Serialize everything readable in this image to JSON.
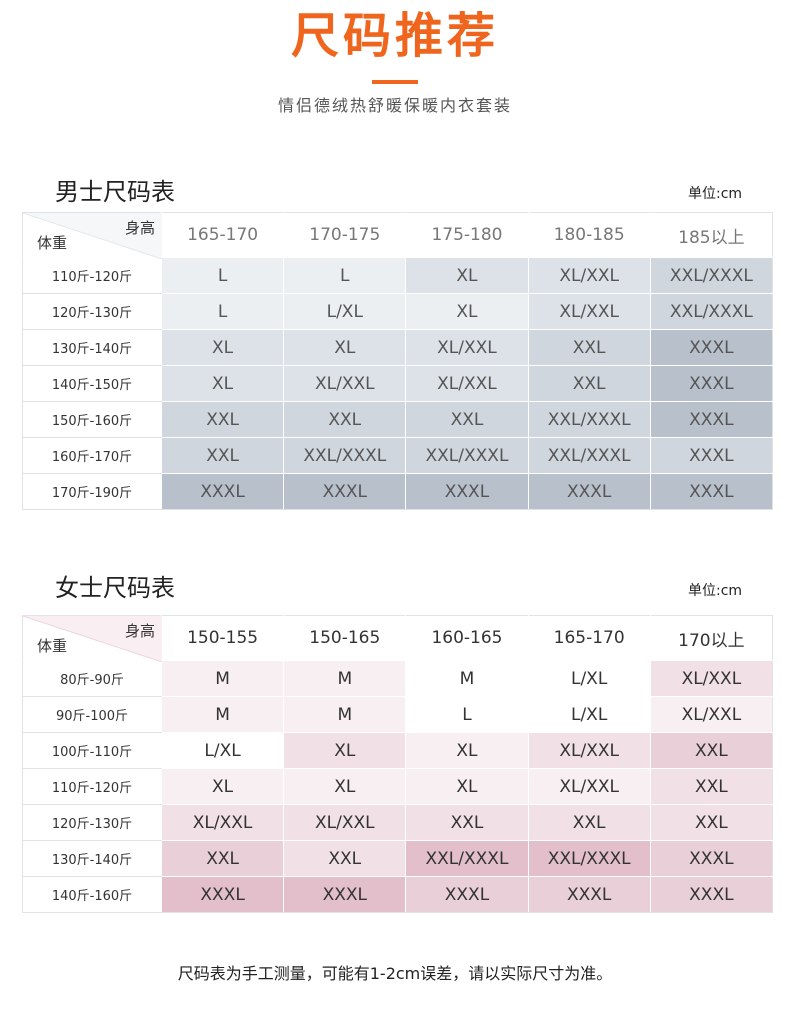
{
  "header": {
    "title": "尺码推荐",
    "subtitle": "情侣德绒热舒暖保暖内衣套装"
  },
  "men": {
    "title": "男士尺码表",
    "unit_label": "单位:",
    "unit_value": "cm",
    "corner_height": "身高",
    "corner_weight": "体重",
    "heights": [
      "165-170",
      "170-175",
      "175-180",
      "180-185",
      "185以上"
    ],
    "rows": [
      {
        "weight": "110斤-120斤",
        "sizes": [
          "L",
          "L",
          "XL",
          "XL/XXL",
          "XXL/XXXL"
        ]
      },
      {
        "weight": "120斤-130斤",
        "sizes": [
          "L",
          "L/XL",
          "XL",
          "XL/XXL",
          "XXL/XXXL"
        ]
      },
      {
        "weight": "130斤-140斤",
        "sizes": [
          "XL",
          "XL",
          "XL/XXL",
          "XXL",
          "XXXL"
        ]
      },
      {
        "weight": "140斤-150斤",
        "sizes": [
          "XL",
          "XL/XXL",
          "XL/XXL",
          "XXL",
          "XXXL"
        ]
      },
      {
        "weight": "150斤-160斤",
        "sizes": [
          "XXL",
          "XXL",
          "XXL",
          "XXL/XXXL",
          "XXXL"
        ]
      },
      {
        "weight": "160斤-170斤",
        "sizes": [
          "XXL",
          "XXL/XXXL",
          "XXL/XXXL",
          "XXL/XXXL",
          "XXXL"
        ]
      },
      {
        "weight": "170斤-190斤",
        "sizes": [
          "XXXL",
          "XXXL",
          "XXXL",
          "XXXL",
          "XXXL"
        ]
      }
    ],
    "colors": [
      "#eceff2",
      "#dde2e8",
      "#cfd6de",
      "#b7c0cb"
    ]
  },
  "women": {
    "title": "女士尺码表",
    "unit_label": "单位:",
    "unit_value": "cm",
    "corner_height": "身高",
    "corner_weight": "体重",
    "heights": [
      "150-155",
      "150-165",
      "160-165",
      "165-170",
      "170以上"
    ],
    "rows": [
      {
        "weight": "80斤-90斤",
        "sizes": [
          "M",
          "M",
          "M",
          "L/XL",
          "XL/XXL"
        ]
      },
      {
        "weight": "90斤-100斤",
        "sizes": [
          "M",
          "M",
          "L",
          "L/XL",
          "XL/XXL"
        ]
      },
      {
        "weight": "100斤-110斤",
        "sizes": [
          "L/XL",
          "XL",
          "XL",
          "XL/XXL",
          "XXL"
        ]
      },
      {
        "weight": "110斤-120斤",
        "sizes": [
          "XL",
          "XL",
          "XL",
          "XL/XXL",
          "XXL"
        ]
      },
      {
        "weight": "120斤-130斤",
        "sizes": [
          "XL/XXL",
          "XL/XXL",
          "XXL",
          "XXL",
          "XXL"
        ]
      },
      {
        "weight": "130斤-140斤",
        "sizes": [
          "XXL",
          "XXL",
          "XXL/XXXL",
          "XXL/XXXL",
          "XXXL"
        ]
      },
      {
        "weight": "140斤-160斤",
        "sizes": [
          "XXXL",
          "XXXL",
          "XXXL",
          "XXXL",
          "XXXL"
        ]
      }
    ],
    "colors": [
      "#ffffff",
      "#f7eff1",
      "#f1e1e6",
      "#e9cfd7",
      "#e2bfcb"
    ]
  },
  "footer": {
    "note": "尺码表为手工测量，可能有1-2cm误差，请以实际尺寸为准。"
  }
}
